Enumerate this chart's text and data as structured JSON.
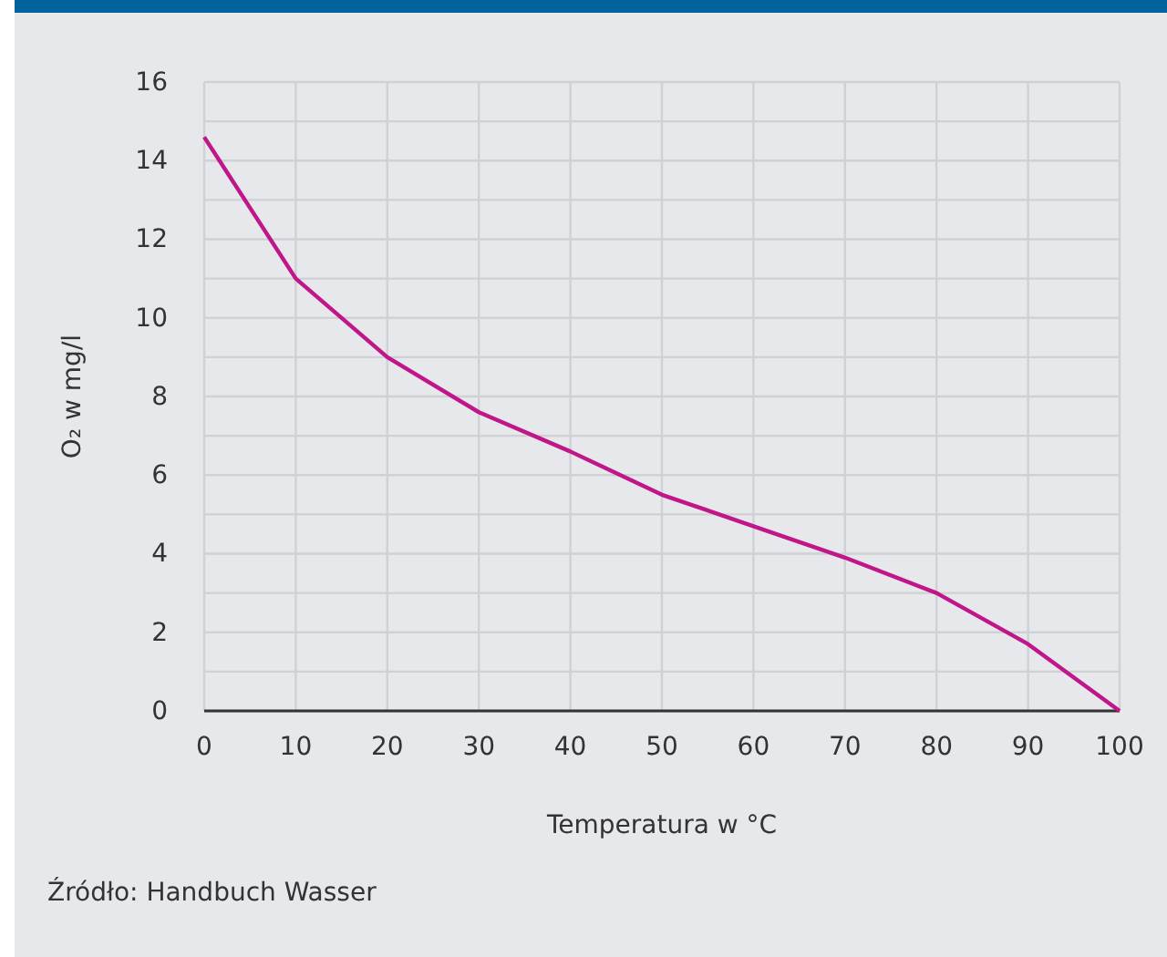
{
  "chart_data": {
    "type": "line",
    "xlabel": "Temperatura w °C",
    "ylabel": "O₂ w mg/l",
    "x": [
      0,
      10,
      20,
      30,
      40,
      50,
      60,
      70,
      80,
      90,
      100
    ],
    "series": [
      {
        "color": "#c0168a",
        "values": [
          14.6,
          11,
          9,
          7.6,
          6.6,
          5.5,
          4.7,
          3.9,
          3.0,
          1.7,
          0
        ]
      }
    ],
    "xlim": [
      0,
      100
    ],
    "xticks": [
      0,
      10,
      20,
      30,
      40,
      50,
      60,
      70,
      80,
      90,
      100
    ],
    "ylim": [
      0,
      16
    ],
    "yticks": [
      0,
      {
        "value": 1,
        "label": null
      },
      2,
      {
        "value": 3,
        "label": null
      },
      4,
      {
        "value": 5,
        "label": null
      },
      6,
      {
        "value": 7,
        "label": null
      },
      8,
      {
        "value": 9,
        "label": null
      },
      10,
      {
        "value": 11,
        "label": null
      },
      12,
      {
        "value": 13,
        "label": null
      },
      14,
      {
        "value": 15,
        "label": null
      },
      16
    ],
    "grid": true,
    "marker": "none",
    "line_style": "solid",
    "annotations": [
      "Źródło: Handbuch Wasser"
    ]
  }
}
